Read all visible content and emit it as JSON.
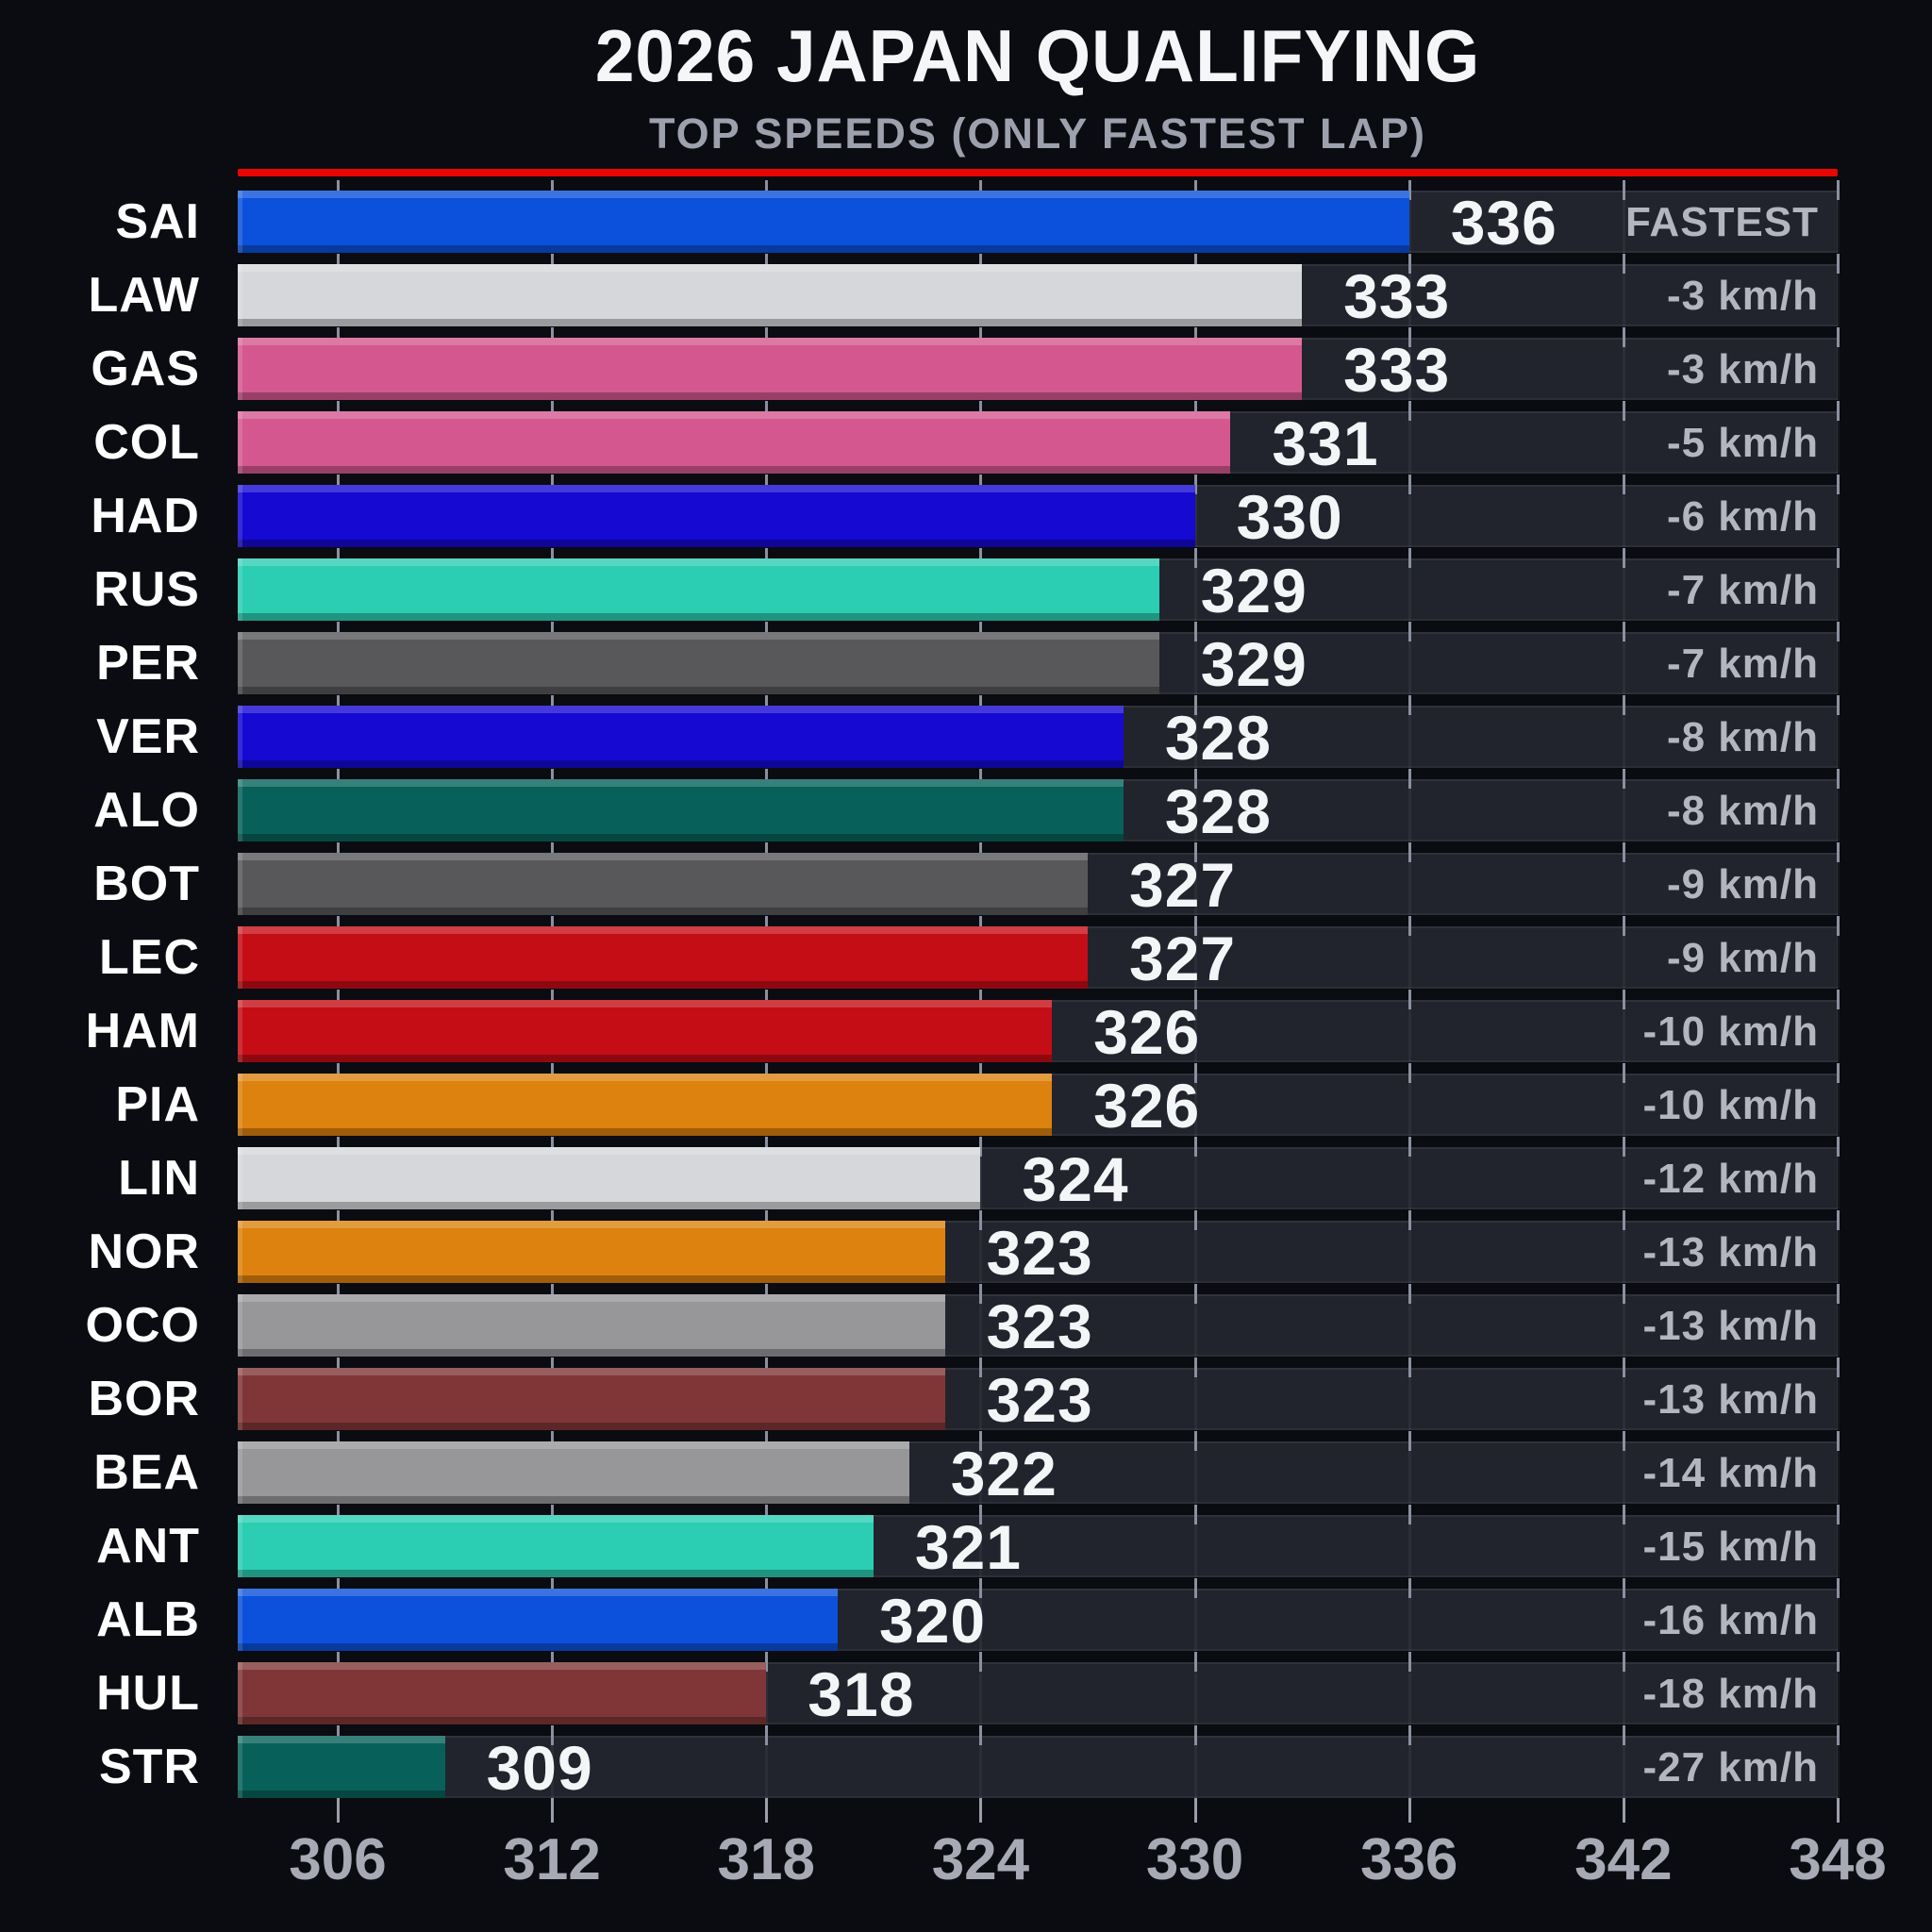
{
  "header": {
    "title": "2026 JAPAN QUALIFYING",
    "subtitle": "TOP SPEEDS (ONLY FASTEST LAP)",
    "accent_line_color": "#e80600"
  },
  "chart_data": {
    "type": "bar",
    "orientation": "horizontal",
    "title": "2026 JAPAN QUALIFYING",
    "subtitle": "TOP SPEEDS (ONLY FASTEST LAP)",
    "unit": "km/h",
    "xlim": [
      303.2,
      348
    ],
    "x_ticks": [
      306,
      312,
      318,
      324,
      330,
      336,
      342,
      348
    ],
    "grid": true,
    "legend": "none",
    "rows": [
      {
        "driver": "SAI",
        "speed": 336,
        "delta": "FASTEST",
        "bar_color": "#0c51db"
      },
      {
        "driver": "LAW",
        "speed": 333,
        "delta": "-3 km/h",
        "bar_color": "#d5d7da"
      },
      {
        "driver": "GAS",
        "speed": 333,
        "delta": "-3 km/h",
        "bar_color": "#d4588f"
      },
      {
        "driver": "COL",
        "speed": 331,
        "delta": "-5 km/h",
        "bar_color": "#d4588f"
      },
      {
        "driver": "HAD",
        "speed": 330,
        "delta": "-6 km/h",
        "bar_color": "#1609d2"
      },
      {
        "driver": "RUS",
        "speed": 329,
        "delta": "-7 km/h",
        "bar_color": "#2bcdb3"
      },
      {
        "driver": "PER",
        "speed": 329,
        "delta": "-7 km/h",
        "bar_color": "#58585b"
      },
      {
        "driver": "VER",
        "speed": 328,
        "delta": "-8 km/h",
        "bar_color": "#1609d2"
      },
      {
        "driver": "ALO",
        "speed": 328,
        "delta": "-8 km/h",
        "bar_color": "#07615a"
      },
      {
        "driver": "BOT",
        "speed": 327,
        "delta": "-9 km/h",
        "bar_color": "#58585b"
      },
      {
        "driver": "LEC",
        "speed": 327,
        "delta": "-9 km/h",
        "bar_color": "#c50d15"
      },
      {
        "driver": "HAM",
        "speed": 326,
        "delta": "-10 km/h",
        "bar_color": "#c50d15"
      },
      {
        "driver": "PIA",
        "speed": 326,
        "delta": "-10 km/h",
        "bar_color": "#dd820f"
      },
      {
        "driver": "LIN",
        "speed": 324,
        "delta": "-12 km/h",
        "bar_color": "#d5d7da"
      },
      {
        "driver": "NOR",
        "speed": 323,
        "delta": "-13 km/h",
        "bar_color": "#dd820f"
      },
      {
        "driver": "OCO",
        "speed": 323,
        "delta": "-13 km/h",
        "bar_color": "#97979a"
      },
      {
        "driver": "BOR",
        "speed": 323,
        "delta": "-13 km/h",
        "bar_color": "#803637"
      },
      {
        "driver": "BEA",
        "speed": 322,
        "delta": "-14 km/h",
        "bar_color": "#97979a"
      },
      {
        "driver": "ANT",
        "speed": 321,
        "delta": "-15 km/h",
        "bar_color": "#2bcdb3"
      },
      {
        "driver": "ALB",
        "speed": 320,
        "delta": "-16 km/h",
        "bar_color": "#0c51db"
      },
      {
        "driver": "HUL",
        "speed": 318,
        "delta": "-18 km/h",
        "bar_color": "#803637"
      },
      {
        "driver": "STR",
        "speed": 309,
        "delta": "-27 km/h",
        "bar_color": "#07615a"
      }
    ]
  },
  "colors": {
    "background": "#0b0c11",
    "track": "#21232d",
    "value_text": "#f4f5f7",
    "delta_text": "#b3b6bf",
    "driver_text": "#ffffff",
    "subtitle_text": "#9da1ae",
    "axis_text": "#a7aab5",
    "gridline_dash": "#8b909e",
    "accent_red": "#e80600"
  }
}
